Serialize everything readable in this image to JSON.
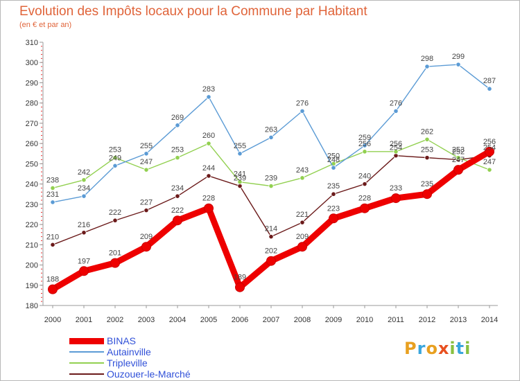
{
  "title": "Evolution des Impôts locaux pour la Commune par Habitant",
  "subtitle": "(en € et par an)",
  "logo": {
    "letters": [
      "P",
      "r",
      "o",
      "x",
      "i",
      "t",
      "i"
    ],
    "colors": [
      "#e8a020",
      "#3aa6dd",
      "#e8a020",
      "#e85020",
      "#88c040",
      "#3aa6dd",
      "#88c040"
    ]
  },
  "chart_data": {
    "type": "line",
    "x": [
      "2000",
      "2001",
      "2002",
      "2003",
      "2004",
      "2005",
      "2006",
      "2007",
      "2008",
      "2009",
      "2010",
      "2011",
      "2012",
      "2013",
      "2014"
    ],
    "ylim": [
      180,
      310
    ],
    "yticks": [
      180,
      190,
      200,
      210,
      220,
      230,
      240,
      250,
      260,
      270,
      280,
      290,
      300,
      310
    ],
    "grid": false,
    "legend_position": "bottom-left",
    "series": [
      {
        "name": "BINAS",
        "color": "#ee0000",
        "values": [
          188,
          197,
          201,
          209,
          222,
          228,
          189,
          202,
          209,
          223,
          228,
          233,
          235,
          247,
          256
        ],
        "labels": [
          "188",
          "197",
          "201",
          "209",
          "222",
          "228",
          "189",
          "202",
          "209",
          "223",
          "228",
          "233",
          "235",
          "247",
          "256"
        ]
      },
      {
        "name": "Autainville",
        "color": "#5b9bd5",
        "values": [
          231,
          234,
          249,
          255,
          269,
          283,
          255,
          263,
          276,
          248,
          259,
          276,
          298,
          299,
          287
        ],
        "labels": [
          "231",
          "234",
          "249",
          "255",
          "269",
          "283",
          "255",
          "263",
          "276",
          "248",
          "259",
          "276",
          "298",
          "299",
          "287"
        ]
      },
      {
        "name": "Tripleville",
        "color": "#92d050",
        "values": [
          238,
          242,
          253,
          247,
          253,
          260,
          241,
          239,
          243,
          250,
          256,
          256,
          262,
          253,
          247
        ],
        "labels": [
          "238",
          "242",
          "253",
          "247",
          "253",
          "260",
          "241",
          "239",
          "243",
          "250",
          "256",
          "256",
          "262",
          "253",
          "247"
        ]
      },
      {
        "name": "Ouzouer-le-Marché",
        "color": "#6b1a1a",
        "values": [
          210,
          216,
          222,
          227,
          234,
          244,
          239,
          214,
          221,
          235,
          240,
          254,
          253,
          252,
          254
        ],
        "labels": [
          "210",
          "216",
          "222",
          "227",
          "234",
          "244",
          "239",
          "214",
          "221",
          "235",
          "240",
          "254",
          "253",
          "252",
          "254"
        ]
      }
    ]
  }
}
